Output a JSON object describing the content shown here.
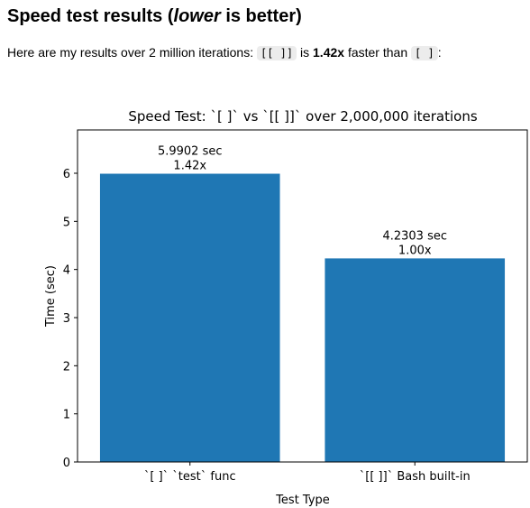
{
  "page": {
    "heading_pre": "Speed test results (",
    "heading_em": "lower",
    "heading_post": " is better)",
    "intro_pre": "Here are my results over 2 million iterations: ",
    "code_new": "[[ ]]",
    "intro_mid": " is ",
    "factor": "1.42x",
    "intro_mid2": " faster than ",
    "code_old": "[ ]",
    "intro_post": ":"
  },
  "chart_data": {
    "type": "bar",
    "title": "Speed Test: `[ ]` vs `[[ ]]` over 2,000,000 iterations",
    "xlabel": "Test Type",
    "ylabel": "Time (sec)",
    "categories": [
      "`[ ]` `test` func",
      "`[[ ]]` Bash built-in"
    ],
    "values": [
      5.9902,
      4.2303
    ],
    "bar_labels": [
      [
        "5.9902 sec",
        "1.42x"
      ],
      [
        "4.2303 sec",
        "1.00x"
      ]
    ],
    "ylim": [
      0,
      6.9
    ],
    "yticks": [
      0,
      1,
      2,
      3,
      4,
      5,
      6
    ],
    "bar_color": "#1f77b4",
    "grid": false
  }
}
